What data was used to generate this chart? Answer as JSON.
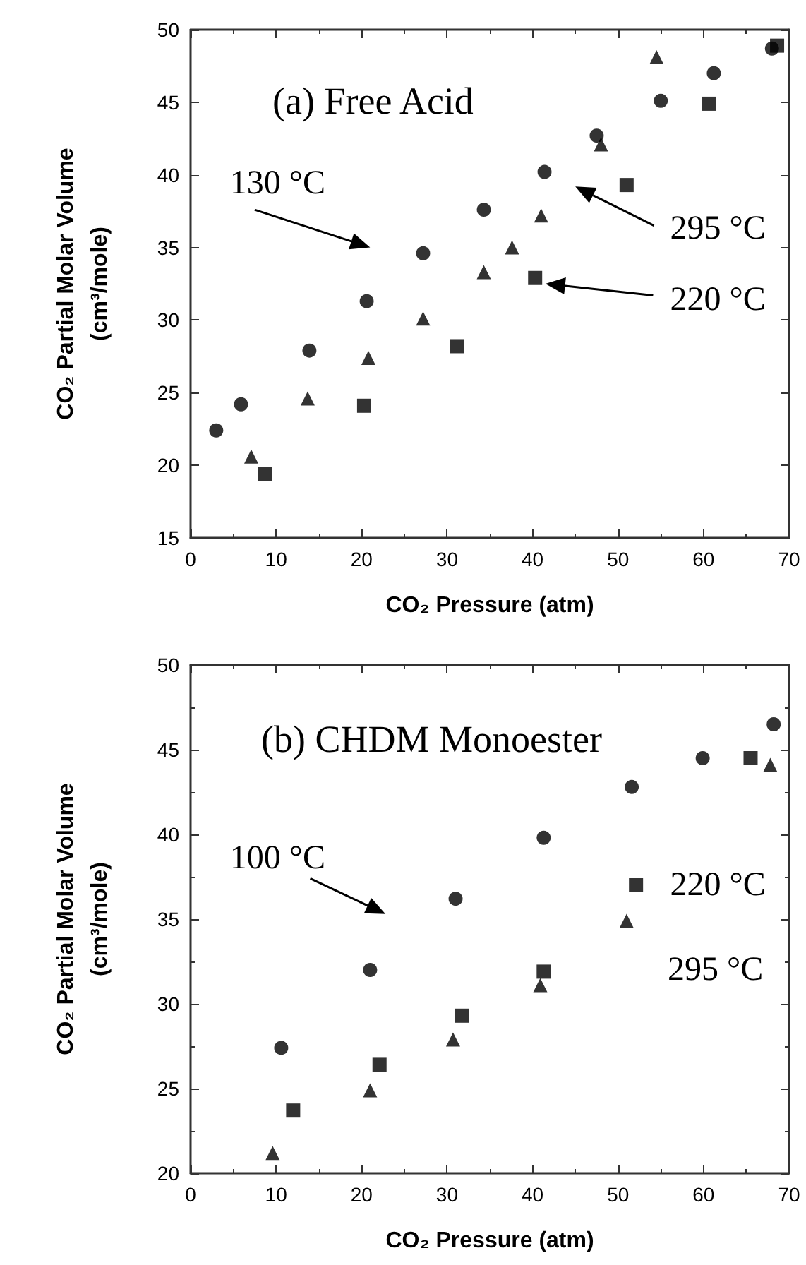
{
  "chart_data": [
    {
      "type": "scatter",
      "title": "(a) Free Acid",
      "xlabel": "CO₂ Pressure (atm)",
      "ylabel": "CO₂ Partial Molar Volume\n(cm³/mole)",
      "series": [
        {
          "color": "#000000",
          "marker": "circle",
          "x": [
            3,
            5.9,
            13.9,
            20.6,
            27.2,
            34.3,
            41.4,
            47.5,
            55,
            61.2,
            68
          ],
          "values": [
            22.4,
            24.2,
            27.9,
            31.3,
            34.6,
            37.6,
            40.2,
            42.7,
            45.1,
            47.0,
            48.7
          ]
        },
        {
          "color": "#000000",
          "marker": "triangle",
          "x": [
            7.1,
            13.7,
            20.8,
            27.2,
            34.3,
            37.6,
            41,
            48,
            54.5
          ],
          "values": [
            20.6,
            24.6,
            27.4,
            30.1,
            33.3,
            35.0,
            37.2,
            42.1,
            48.1
          ]
        },
        {
          "color": "#000000",
          "marker": "square",
          "x": [
            8.7,
            20.3,
            31.2,
            40.3,
            51,
            60.6,
            68.6
          ],
          "values": [
            19.4,
            24.1,
            28.2,
            32.9,
            39.3,
            44.9,
            48.9
          ]
        }
      ],
      "annotations": [
        "130 °C",
        "295 °C",
        "220 °C"
      ],
      "xlim": [
        0,
        70
      ],
      "xticks": [
        0,
        10,
        20,
        30,
        40,
        50,
        60,
        70
      ],
      "ylim": [
        15,
        50
      ],
      "yticks": [
        15,
        20,
        25,
        30,
        35,
        40,
        45,
        50
      ]
    },
    {
      "type": "scatter",
      "title": "(b) CHDM Monoester",
      "xlabel": "CO₂ Pressure (atm)",
      "ylabel": "CO₂ Partial Molar Volume\n(cm³/mole)",
      "series": [
        {
          "color": "#000000",
          "marker": "circle",
          "x": [
            10.6,
            21,
            31,
            41.3,
            51.6,
            59.9,
            68.2
          ],
          "values": [
            27.4,
            32.0,
            36.2,
            39.8,
            42.8,
            44.5,
            46.5
          ]
        },
        {
          "color": "#000000",
          "marker": "square",
          "x": [
            12,
            22.1,
            31.7,
            41.3,
            52.1,
            65.5
          ],
          "values": [
            23.7,
            26.4,
            29.3,
            31.9,
            37.0,
            44.5
          ]
        },
        {
          "color": "#000000",
          "marker": "triangle",
          "x": [
            9.6,
            21,
            30.7,
            40.9,
            51,
            67.8
          ],
          "values": [
            21.2,
            24.9,
            27.9,
            31.1,
            34.9,
            44.1
          ]
        }
      ],
      "annotations": [
        "100 °C",
        "220 °C",
        "295 °C"
      ],
      "xlim": [
        0,
        70
      ],
      "xticks": [
        0,
        10,
        20,
        30,
        40,
        50,
        60,
        70
      ],
      "ylim": [
        20,
        50
      ],
      "yticks": [
        20,
        25,
        30,
        35,
        40,
        45,
        50
      ]
    }
  ]
}
